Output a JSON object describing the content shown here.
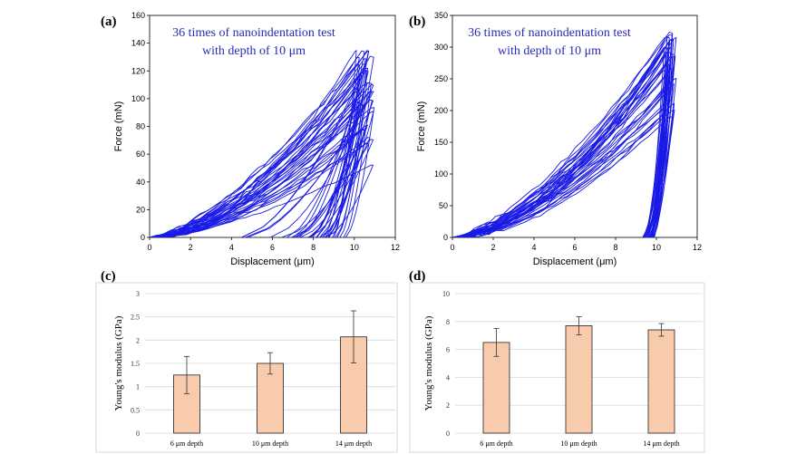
{
  "panel_labels": [
    "(a)",
    "(b)",
    "(c)",
    "(d)"
  ],
  "colors": {
    "curve": "#1a1ae6",
    "annotation": "#2a2ab8",
    "bar_fill": "#f8cbad",
    "bar_stroke": "#222222",
    "grid": "#d9d9d9",
    "axis": "#000000"
  },
  "chart_data": [
    {
      "type": "line",
      "panel": "(a)",
      "annotation": [
        "36 times of nanoindentation test",
        "with depth of 10 μm"
      ],
      "xlabel": "Displacement (μm)",
      "ylabel": "Force (mN)",
      "xlim": [
        0,
        12
      ],
      "ylim": [
        0,
        160
      ],
      "xticks": [
        0,
        2,
        4,
        6,
        8,
        10,
        12
      ],
      "yticks": [
        0,
        20,
        40,
        60,
        80,
        100,
        120,
        140,
        160
      ],
      "n_curves": 36,
      "peak_force_range": [
        52,
        138
      ],
      "max_displacement_range": [
        10.0,
        10.9
      ],
      "unload_start_range": [
        3.6,
        9.6
      ]
    },
    {
      "type": "line",
      "panel": "(b)",
      "annotation": [
        "36 times of nanoindentation test",
        "with depth of 10 μm"
      ],
      "xlabel": "Displacement (μm)",
      "ylabel": "Force (mN)",
      "xlim": [
        0,
        12
      ],
      "ylim": [
        0,
        350
      ],
      "xticks": [
        0,
        2,
        4,
        6,
        8,
        10,
        12
      ],
      "yticks": [
        0,
        50,
        100,
        150,
        200,
        250,
        300,
        350
      ],
      "n_curves": 36,
      "peak_force_range": [
        175,
        333
      ],
      "max_displacement_range": [
        10.3,
        10.9
      ],
      "unload_start_range": [
        9.3,
        9.9
      ]
    },
    {
      "type": "bar",
      "panel": "(c)",
      "categories": [
        "6 μm depth",
        "10 μm depth",
        "14 μm depth"
      ],
      "values": [
        1.25,
        1.5,
        2.07
      ],
      "errors": [
        0.4,
        0.23,
        0.56
      ],
      "ylabel": "Young's modulus (GPa)",
      "ylim": [
        0,
        3
      ],
      "yticks": [
        "0",
        "0.5",
        "1",
        "1.5",
        "2",
        "2.5",
        "3"
      ],
      "grid": true
    },
    {
      "type": "bar",
      "panel": "(d)",
      "categories": [
        "6 μm depth",
        "10 μm depth",
        "14 μm depth"
      ],
      "values": [
        6.5,
        7.7,
        7.4
      ],
      "errors": [
        1.0,
        0.65,
        0.45
      ],
      "ylabel": "Young's modulus (GPa)",
      "ylim": [
        0,
        10
      ],
      "yticks": [
        "0",
        "2",
        "4",
        "6",
        "8",
        "10"
      ],
      "grid": true
    }
  ]
}
